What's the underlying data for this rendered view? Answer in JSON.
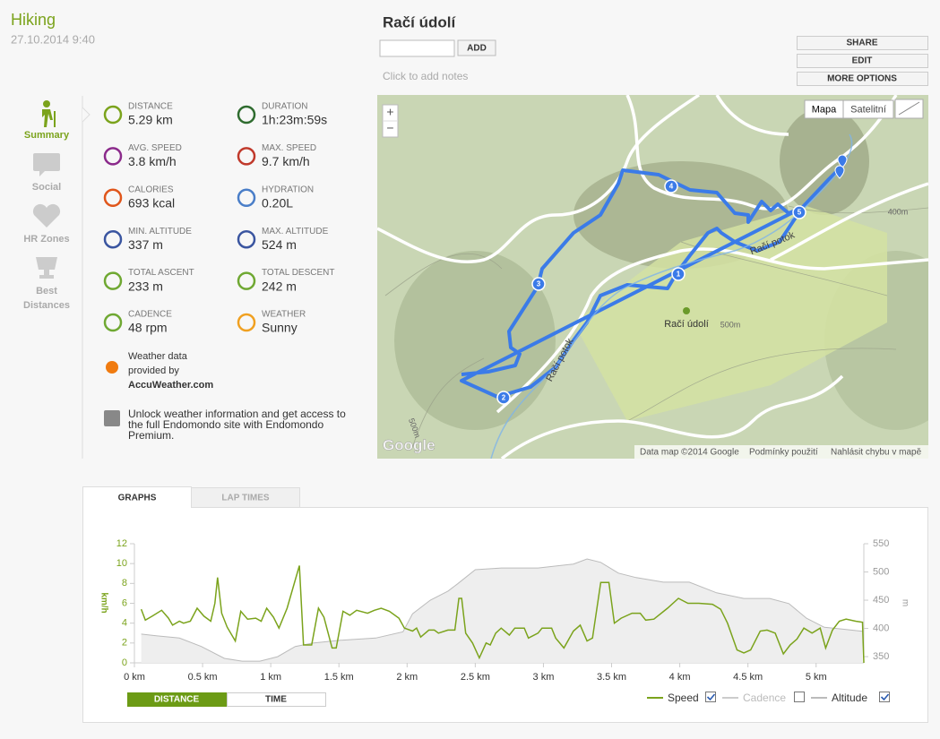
{
  "header": {
    "activity": "Hiking",
    "date": "27.10.2014 9:40",
    "title": "Račí údolí",
    "add_button": "ADD",
    "notes": "Click to add notes",
    "buttons": [
      "SHARE",
      "EDIT",
      "MORE OPTIONS"
    ]
  },
  "sidebar": [
    [
      "Summary"
    ],
    [
      "Social"
    ],
    [
      "HR Zones"
    ],
    [
      "Best",
      "Distances"
    ]
  ],
  "stats": [
    {
      "label": "DISTANCE",
      "value": "5.29 km"
    },
    {
      "label": "DURATION",
      "value": "1h:23m:59s"
    },
    {
      "label": "AVG. SPEED",
      "value": "3.8 km/h"
    },
    {
      "label": "MAX. SPEED",
      "value": "9.7 km/h"
    },
    {
      "label": "CALORIES",
      "value": "693 kcal"
    },
    {
      "label": "HYDRATION",
      "value": "0.20L"
    },
    {
      "label": "MIN. ALTITUDE",
      "value": "337 m"
    },
    {
      "label": "MAX. ALTITUDE",
      "value": "524 m"
    },
    {
      "label": "TOTAL ASCENT",
      "value": "233 m"
    },
    {
      "label": "TOTAL DESCENT",
      "value": "242 m"
    },
    {
      "label": "CADENCE",
      "value": "48 rpm"
    },
    {
      "label": "WEATHER",
      "value": "Sunny"
    }
  ],
  "weather_credit": {
    "lines": [
      "Weather data",
      "provided by"
    ],
    "link": "AccuWeather.com"
  },
  "premium_note": [
    "Unlock weather information and get access to",
    "the full Endomondo site with Endomondo",
    "Premium."
  ],
  "map": {
    "zoom": [
      "+",
      "−"
    ],
    "types": [
      "Mapa",
      "Satelitní"
    ],
    "markers": [
      "1",
      "2",
      "3",
      "4",
      "5"
    ],
    "labels": {
      "stream": "Račí potok",
      "stream_lower": "Račí potok",
      "place": "Račí údolí",
      "contour_400": "400m",
      "contour_500": "500m",
      "contour_500_left": "500m"
    },
    "logo": "Google",
    "footer": [
      "Data map ©2014 Google",
      "Podmínky použití",
      "Nahlásit chybu v mapě"
    ]
  },
  "tabs": [
    "GRAPHS",
    "LAP TIMES"
  ],
  "toggle": [
    "DISTANCE",
    "TIME"
  ],
  "graph": {
    "type": "line",
    "ylabel": "km/h",
    "y2label": "m",
    "xlim": [
      0,
      5.35
    ],
    "ylim": [
      0,
      12
    ],
    "y2lim": [
      339,
      550
    ],
    "xticks": [
      {
        "value": 0,
        "label": "0 km"
      },
      {
        "value": 0.5,
        "label": "0.5 km"
      },
      {
        "value": 1,
        "label": "1 km"
      },
      {
        "value": 1.5,
        "label": "1.5 km"
      },
      {
        "value": 2,
        "label": "2 km"
      },
      {
        "value": 2.5,
        "label": "2.5 km"
      },
      {
        "value": 3,
        "label": "3 km"
      },
      {
        "value": 3.5,
        "label": "3.5 km"
      },
      {
        "value": 4,
        "label": "4 km"
      },
      {
        "value": 4.5,
        "label": "4.5 km"
      },
      {
        "value": 5,
        "label": "5 km"
      }
    ],
    "yticks": [
      0,
      2,
      4,
      6,
      8,
      10,
      12
    ],
    "y2ticks": [
      350,
      400,
      450,
      500,
      550
    ],
    "series": [
      {
        "name": "Speed",
        "color": "#7ba31c",
        "visible": true,
        "x": [
          0.05,
          0.08,
          0.13,
          0.2,
          0.25,
          0.28,
          0.33,
          0.36,
          0.41,
          0.46,
          0.51,
          0.56,
          0.59,
          0.61,
          0.64,
          0.68,
          0.74,
          0.78,
          0.83,
          0.89,
          0.93,
          0.97,
          1.02,
          1.06,
          1.12,
          1.21,
          1.24,
          1.3,
          1.35,
          1.39,
          1.45,
          1.48,
          1.53,
          1.58,
          1.63,
          1.71,
          1.76,
          1.81,
          1.87,
          1.94,
          1.98,
          2.04,
          2.07,
          2.1,
          2.16,
          2.2,
          2.23,
          2.3,
          2.35,
          2.38,
          2.4,
          2.43,
          2.48,
          2.53,
          2.58,
          2.61,
          2.65,
          2.69,
          2.75,
          2.79,
          2.86,
          2.89,
          2.96,
          2.99,
          3.06,
          3.09,
          3.15,
          3.22,
          3.27,
          3.32,
          3.36,
          3.42,
          3.48,
          3.52,
          3.57,
          3.65,
          3.71,
          3.75,
          3.81,
          3.91,
          3.99,
          4.06,
          4.14,
          4.24,
          4.3,
          4.35,
          4.42,
          4.47,
          4.52,
          4.59,
          4.64,
          4.7,
          4.76,
          4.81,
          4.86,
          4.91,
          4.97,
          5.03,
          5.07,
          5.12,
          5.17,
          5.22,
          5.29,
          5.34,
          5.35
        ],
        "values": [
          5.4,
          4.3,
          4.7,
          5.3,
          4.5,
          3.8,
          4.2,
          4.0,
          4.2,
          5.5,
          4.7,
          4.2,
          6.0,
          8.6,
          5.0,
          3.6,
          2.2,
          5.2,
          4.4,
          4.5,
          4.2,
          5.5,
          4.6,
          3.5,
          5.5,
          9.8,
          1.8,
          1.8,
          5.5,
          4.6,
          1.5,
          1.5,
          5.2,
          4.8,
          5.3,
          5.0,
          5.3,
          5.5,
          5.2,
          4.5,
          3.5,
          3.2,
          3.5,
          2.6,
          3.3,
          3.3,
          3.0,
          3.3,
          3.3,
          6.5,
          6.5,
          3.0,
          2.0,
          0.5,
          2.0,
          1.8,
          3.0,
          3.5,
          2.8,
          3.5,
          3.5,
          2.5,
          3.0,
          3.5,
          3.5,
          2.5,
          1.5,
          3.2,
          3.8,
          2.2,
          2.5,
          8.1,
          8.1,
          4.0,
          4.5,
          5.0,
          5.0,
          4.3,
          4.4,
          5.5,
          6.5,
          6.0,
          6.0,
          5.9,
          5.4,
          4.0,
          1.3,
          1.0,
          1.3,
          3.2,
          3.3,
          3.0,
          0.9,
          1.8,
          2.4,
          3.5,
          3.0,
          3.5,
          1.5,
          3.3,
          4.2,
          4.4,
          4.2,
          4.1,
          0
        ]
      },
      {
        "name": "Cadence",
        "color": "#cccccc",
        "visible": false
      },
      {
        "name": "Altitude",
        "color": "#bbbbbb",
        "axis": "y2",
        "visible": true,
        "x": [
          0.05,
          0.16,
          0.33,
          0.49,
          0.66,
          0.79,
          0.92,
          1.05,
          1.18,
          1.31,
          1.51,
          1.77,
          1.97,
          2.04,
          2.17,
          2.3,
          2.37,
          2.5,
          2.69,
          2.96,
          3.22,
          3.32,
          3.42,
          3.55,
          3.68,
          3.88,
          4.07,
          4.27,
          4.47,
          4.66,
          4.8,
          4.93,
          5.06,
          5.19,
          5.34
        ],
        "values": [
          390,
          387,
          383,
          368,
          347,
          342,
          342,
          350,
          368,
          374,
          379,
          383,
          394,
          426,
          450,
          466,
          479,
          504,
          507,
          507,
          514,
          523,
          517,
          498,
          490,
          482,
          482,
          463,
          453,
          453,
          444,
          418,
          402,
          399,
          395
        ]
      }
    ]
  }
}
